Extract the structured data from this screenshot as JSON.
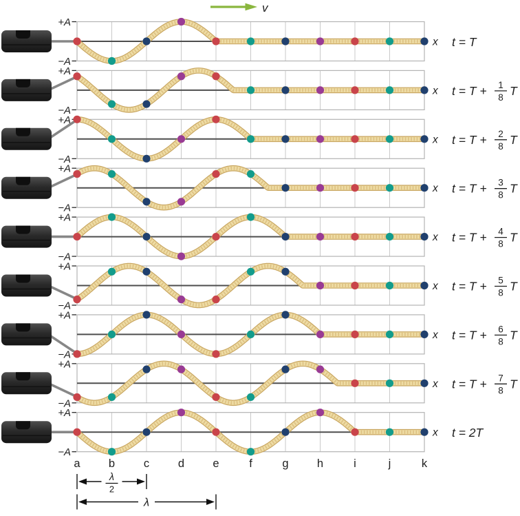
{
  "velocity": {
    "label": "v"
  },
  "axis": {
    "plus": "+A",
    "minus": "−A",
    "x": "x"
  },
  "positions": [
    "a",
    "b",
    "c",
    "d",
    "e",
    "f",
    "g",
    "h",
    "i",
    "j",
    "k"
  ],
  "dot_color_cycle": [
    "red",
    "teal",
    "navy",
    "purple"
  ],
  "colors": {
    "red": "#c9444a",
    "teal": "#139c8c",
    "navy": "#20406e",
    "purple": "#993b94",
    "rope": "#eedca4",
    "rope_edge": "#c8a55f",
    "rope_texture": "#d9bb7c",
    "grid": "#c9c9c9",
    "grid_border": "#b3b3b3",
    "midline": "#4d4d4d",
    "rod": "#878787",
    "device_top": "#4e4e4e",
    "device_mid": "#2a2a2a",
    "device_bottom": "#151515",
    "device_notch": "#0f0f0f",
    "arrow_green": "#8ab63e",
    "letters": "#333333",
    "dimension": "#111111"
  },
  "wave": {
    "grid_units_per_wavelength": 4,
    "amplitude_units": 1
  },
  "panels": [
    {
      "time_lead": "t = T",
      "time_frac": null,
      "time_tail": "",
      "shift_eighths": 0,
      "front": 4,
      "dots": [
        0,
        -1,
        0,
        1,
        0,
        0,
        0,
        0,
        0,
        0,
        0
      ]
    },
    {
      "time_lead": "t = T +",
      "time_frac": {
        "num": "1",
        "den": "8"
      },
      "time_tail": "T",
      "shift_eighths": 1,
      "front": 4.5,
      "dots": [
        0.707,
        -0.707,
        -0.707,
        0.707,
        0.707,
        0,
        0,
        0,
        0,
        0,
        0
      ]
    },
    {
      "time_lead": "t = T +",
      "time_frac": {
        "num": "2",
        "den": "8"
      },
      "time_tail": "T",
      "shift_eighths": 2,
      "front": 5,
      "dots": [
        1,
        0,
        -1,
        0,
        1,
        0,
        0,
        0,
        0,
        0,
        0
      ]
    },
    {
      "time_lead": "t = T +",
      "time_frac": {
        "num": "3",
        "den": "8"
      },
      "time_tail": "T",
      "shift_eighths": 3,
      "front": 5.5,
      "dots": [
        0.707,
        0.707,
        -0.707,
        -0.707,
        0.707,
        0.707,
        0,
        0,
        0,
        0,
        0
      ]
    },
    {
      "time_lead": "t = T +",
      "time_frac": {
        "num": "4",
        "den": "8"
      },
      "time_tail": "T",
      "shift_eighths": 4,
      "front": 6,
      "dots": [
        0,
        1,
        0,
        -1,
        0,
        1,
        0,
        0,
        0,
        0,
        0
      ]
    },
    {
      "time_lead": "t = T +",
      "time_frac": {
        "num": "5",
        "den": "8"
      },
      "time_tail": "T",
      "shift_eighths": 5,
      "front": 6.5,
      "dots": [
        -0.707,
        0.707,
        0.707,
        -0.707,
        -0.707,
        0.707,
        0.707,
        0,
        0,
        0,
        0
      ]
    },
    {
      "time_lead": "t = T +",
      "time_frac": {
        "num": "6",
        "den": "8"
      },
      "time_tail": "T",
      "shift_eighths": 6,
      "front": 7,
      "dots": [
        -1,
        0,
        1,
        0,
        -1,
        0,
        1,
        0,
        0,
        0,
        0
      ]
    },
    {
      "time_lead": "t = T +",
      "time_frac": {
        "num": "7",
        "den": "8"
      },
      "time_tail": "T",
      "shift_eighths": 7,
      "front": 7.5,
      "dots": [
        -0.707,
        -0.707,
        0.707,
        0.707,
        -0.707,
        -0.707,
        0.707,
        0.707,
        0,
        0,
        0
      ]
    },
    {
      "time_lead": "t = 2T",
      "time_frac": null,
      "time_tail": "",
      "shift_eighths": 8,
      "front": 8,
      "dots": [
        0,
        -1,
        0,
        1,
        0,
        -1,
        0,
        1,
        0,
        0,
        0
      ]
    }
  ],
  "measurements": {
    "half": {
      "num": "λ",
      "den": "2",
      "from": "a",
      "to": "c"
    },
    "full": {
      "label": "λ",
      "from": "a",
      "to": "e"
    }
  }
}
